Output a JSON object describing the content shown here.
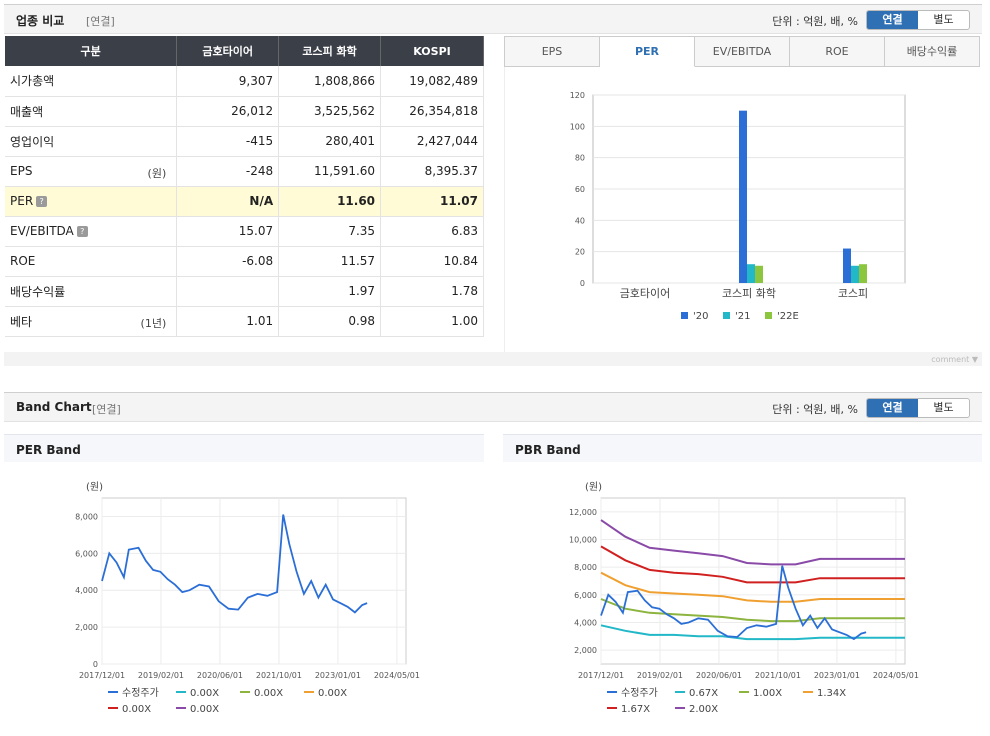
{
  "peer": {
    "title": "업종 비교",
    "sub": "[연결]",
    "unit": "단위 : 억원, 배, %",
    "toggle_on": "연결",
    "toggle_off": "별도",
    "columns": [
      "구분",
      "금호타이어",
      "코스피 화학",
      "KOSPI"
    ],
    "rows": [
      {
        "label": "시가총액",
        "unit": "",
        "v": [
          "9,307",
          "1,808,866",
          "19,082,489"
        ]
      },
      {
        "label": "매출액",
        "unit": "",
        "v": [
          "26,012",
          "3,525,562",
          "26,354,818"
        ]
      },
      {
        "label": "영업이익",
        "unit": "",
        "v": [
          "-415",
          "280,401",
          "2,427,044"
        ]
      },
      {
        "label": "EPS",
        "unit": "(원)",
        "v": [
          "-248",
          "11,591.60",
          "8,395.37"
        ]
      },
      {
        "label": "PER",
        "unit": "",
        "v": [
          "N/A",
          "11.60",
          "11.07"
        ]
      },
      {
        "label": "EV/EBITDA",
        "unit": "",
        "v": [
          "15.07",
          "7.35",
          "6.83"
        ]
      },
      {
        "label": "ROE",
        "unit": "",
        "v": [
          "-6.08",
          "11.57",
          "10.84"
        ]
      },
      {
        "label": "배당수익률",
        "unit": "",
        "v": [
          "",
          "1.97",
          "1.78"
        ]
      },
      {
        "label": "베타",
        "unit": "(1년)",
        "v": [
          "1.01",
          "0.98",
          "1.00"
        ]
      }
    ],
    "tabs": [
      "EPS",
      "PER",
      "EV/EBITDA",
      "ROE",
      "배당수익률"
    ],
    "active_tab": "PER",
    "comment": "comment"
  },
  "band": {
    "title": "Band Chart",
    "sub": "[연결]",
    "unit": "단위 : 억원, 배, %",
    "toggle_on": "연결",
    "toggle_off": "별도",
    "per_title": "PER Band",
    "pbr_title": "PBR Band"
  },
  "chart_data": [
    {
      "type": "bar",
      "categories": [
        "금호타이어",
        "코스피 화학",
        "코스피"
      ],
      "series": [
        {
          "name": "'20",
          "color": "#2b6fd6",
          "values": [
            0,
            110,
            22
          ]
        },
        {
          "name": "'21",
          "color": "#22b8c8",
          "values": [
            0,
            12,
            11
          ]
        },
        {
          "name": "'22E",
          "color": "#8cc63f",
          "values": [
            0,
            11,
            12
          ]
        }
      ],
      "ylim": [
        0,
        120
      ],
      "yticks": [
        0,
        20,
        40,
        60,
        80,
        100,
        120
      ]
    },
    {
      "type": "line",
      "ylabel": "(원)",
      "ylim": [
        0,
        9000
      ],
      "yticks": [
        "0",
        "2,000",
        "4,000",
        "6,000",
        "8,000"
      ],
      "xticks": [
        "2017/12/01",
        "2019/02/01",
        "2020/06/01",
        "2021/10/01",
        "2023/01/01",
        "2024/05/01"
      ],
      "legend": [
        {
          "name": "수정주가",
          "color": "#2b6fd6"
        },
        {
          "name": "0.00X",
          "color": "#22b8c8"
        },
        {
          "name": "0.00X",
          "color": "#8cb43f"
        },
        {
          "name": "0.00X",
          "color": "#f0a030"
        },
        {
          "name": "0.00X",
          "color": "#d12020"
        },
        {
          "name": "0.00X",
          "color": "#8a4aa8"
        }
      ],
      "price": [
        [
          0,
          4500
        ],
        [
          0.3,
          6000
        ],
        [
          0.6,
          5500
        ],
        [
          0.9,
          4700
        ],
        [
          1.1,
          6200
        ],
        [
          1.5,
          6300
        ],
        [
          1.8,
          5600
        ],
        [
          2.1,
          5100
        ],
        [
          2.4,
          5000
        ],
        [
          2.7,
          4600
        ],
        [
          3.0,
          4300
        ],
        [
          3.3,
          3900
        ],
        [
          3.6,
          4000
        ],
        [
          4.0,
          4300
        ],
        [
          4.4,
          4200
        ],
        [
          4.8,
          3400
        ],
        [
          5.2,
          3000
        ],
        [
          5.6,
          2950
        ],
        [
          6.0,
          3600
        ],
        [
          6.4,
          3800
        ],
        [
          6.8,
          3700
        ],
        [
          7.2,
          3900
        ],
        [
          7.45,
          8100
        ],
        [
          7.7,
          6500
        ],
        [
          8.0,
          5000
        ],
        [
          8.3,
          3800
        ],
        [
          8.6,
          4500
        ],
        [
          8.9,
          3600
        ],
        [
          9.2,
          4300
        ],
        [
          9.5,
          3500
        ],
        [
          9.8,
          3300
        ],
        [
          10.1,
          3100
        ],
        [
          10.4,
          2800
        ],
        [
          10.7,
          3200
        ],
        [
          10.9,
          3300
        ]
      ]
    },
    {
      "type": "line",
      "ylabel": "(원)",
      "ylim": [
        1000,
        13000
      ],
      "yticks": [
        "2,000",
        "4,000",
        "6,000",
        "8,000",
        "10,000",
        "12,000"
      ],
      "xticks": [
        "2017/12/01",
        "2019/02/01",
        "2020/06/01",
        "2021/10/01",
        "2023/01/01",
        "2024/05/01"
      ],
      "legend": [
        {
          "name": "수정주가",
          "color": "#2b6fd6"
        },
        {
          "name": "0.67X",
          "color": "#22b8c8"
        },
        {
          "name": "1.00X",
          "color": "#8cb43f"
        },
        {
          "name": "1.34X",
          "color": "#f0a030"
        },
        {
          "name": "1.67X",
          "color": "#d12020"
        },
        {
          "name": "2.00X",
          "color": "#8a4aa8"
        }
      ],
      "price": [
        [
          0,
          4500
        ],
        [
          0.3,
          6000
        ],
        [
          0.6,
          5500
        ],
        [
          0.9,
          4700
        ],
        [
          1.1,
          6200
        ],
        [
          1.5,
          6300
        ],
        [
          1.8,
          5600
        ],
        [
          2.1,
          5100
        ],
        [
          2.4,
          5000
        ],
        [
          2.7,
          4600
        ],
        [
          3.0,
          4300
        ],
        [
          3.3,
          3900
        ],
        [
          3.6,
          4000
        ],
        [
          4.0,
          4300
        ],
        [
          4.4,
          4200
        ],
        [
          4.8,
          3400
        ],
        [
          5.2,
          3000
        ],
        [
          5.6,
          2950
        ],
        [
          6.0,
          3600
        ],
        [
          6.4,
          3800
        ],
        [
          6.8,
          3700
        ],
        [
          7.2,
          3900
        ],
        [
          7.45,
          8100
        ],
        [
          7.7,
          6500
        ],
        [
          8.0,
          5000
        ],
        [
          8.3,
          3800
        ],
        [
          8.6,
          4500
        ],
        [
          8.9,
          3600
        ],
        [
          9.2,
          4300
        ],
        [
          9.5,
          3500
        ],
        [
          9.8,
          3300
        ],
        [
          10.1,
          3100
        ],
        [
          10.4,
          2800
        ],
        [
          10.7,
          3200
        ],
        [
          10.9,
          3300
        ]
      ],
      "bands": [
        [
          [
            0,
            3800
          ],
          [
            1,
            3400
          ],
          [
            2,
            3100
          ],
          [
            3,
            3100
          ],
          [
            4,
            3000
          ],
          [
            5,
            3000
          ],
          [
            6,
            2800
          ],
          [
            7,
            2800
          ],
          [
            8,
            2800
          ],
          [
            9,
            2900
          ],
          [
            10,
            2900
          ],
          [
            11,
            2900
          ],
          [
            12.5,
            2900
          ]
        ],
        [
          [
            0,
            5700
          ],
          [
            1,
            5000
          ],
          [
            2,
            4700
          ],
          [
            3,
            4600
          ],
          [
            4,
            4500
          ],
          [
            5,
            4400
          ],
          [
            6,
            4200
          ],
          [
            7,
            4100
          ],
          [
            8,
            4100
          ],
          [
            9,
            4300
          ],
          [
            10,
            4300
          ],
          [
            11,
            4300
          ],
          [
            12.5,
            4300
          ]
        ],
        [
          [
            0,
            7600
          ],
          [
            1,
            6700
          ],
          [
            2,
            6200
          ],
          [
            3,
            6100
          ],
          [
            4,
            6000
          ],
          [
            5,
            5900
          ],
          [
            6,
            5600
          ],
          [
            7,
            5500
          ],
          [
            8,
            5500
          ],
          [
            9,
            5700
          ],
          [
            10,
            5700
          ],
          [
            11,
            5700
          ],
          [
            12.5,
            5700
          ]
        ],
        [
          [
            0,
            9500
          ],
          [
            1,
            8500
          ],
          [
            2,
            7800
          ],
          [
            3,
            7600
          ],
          [
            4,
            7500
          ],
          [
            5,
            7300
          ],
          [
            6,
            6900
          ],
          [
            7,
            6900
          ],
          [
            8,
            6900
          ],
          [
            9,
            7200
          ],
          [
            10,
            7200
          ],
          [
            11,
            7200
          ],
          [
            12.5,
            7200
          ]
        ],
        [
          [
            0,
            11400
          ],
          [
            1,
            10200
          ],
          [
            2,
            9400
          ],
          [
            3,
            9200
          ],
          [
            4,
            9000
          ],
          [
            5,
            8800
          ],
          [
            6,
            8300
          ],
          [
            7,
            8200
          ],
          [
            8,
            8200
          ],
          [
            9,
            8600
          ],
          [
            10,
            8600
          ],
          [
            11,
            8600
          ],
          [
            12.5,
            8600
          ]
        ]
      ]
    }
  ]
}
